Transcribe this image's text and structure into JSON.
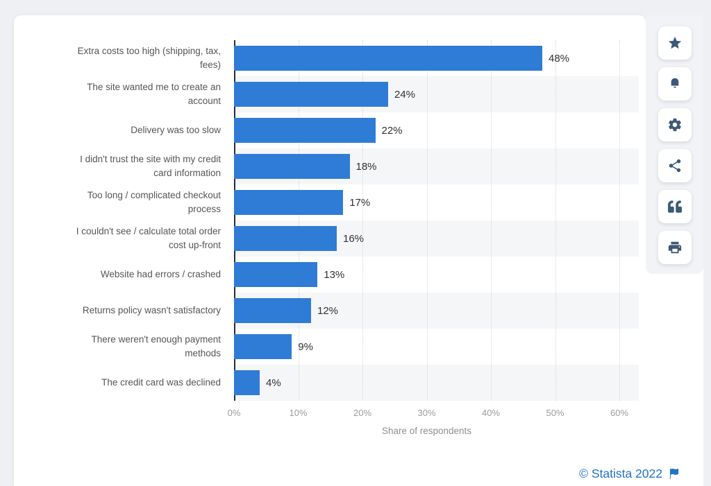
{
  "chart_data": {
    "type": "bar",
    "orientation": "horizontal",
    "title": "",
    "xlabel": "Share of respondents",
    "ylabel": "",
    "xlim": [
      0,
      60
    ],
    "x_ticks": [
      "0%",
      "10%",
      "20%",
      "30%",
      "40%",
      "50%",
      "60%"
    ],
    "grid": "dotted-vertical",
    "legend": "none",
    "categories": [
      "Extra costs too high (shipping, tax, fees)",
      "The site wanted me to create an account",
      "Delivery was too slow",
      "I didn't trust the site with my credit card information",
      "Too long / complicated checkout process",
      "I couldn't see / calculate total order cost up-front",
      "Website had errors / crashed",
      "Returns policy wasn't satisfactory",
      "There weren't enough payment methods",
      "The credit card was declined"
    ],
    "categories_wrapped": [
      "Extra costs too high (shipping, tax,\nfees)",
      "The site wanted me to create an\naccount",
      "Delivery was too slow",
      "I didn't trust the site with my credit\ncard information",
      "Too long / complicated checkout\nprocess",
      "I couldn't see / calculate total order\ncost up-front",
      "Website had errors / crashed",
      "Returns policy wasn't satisfactory",
      "There weren't enough payment\nmethods",
      "The credit card was declined"
    ],
    "values": [
      48,
      24,
      22,
      18,
      17,
      16,
      13,
      12,
      9,
      4
    ],
    "value_labels": [
      "48%",
      "24%",
      "22%",
      "18%",
      "17%",
      "16%",
      "13%",
      "12%",
      "9%",
      "4%"
    ]
  },
  "colors": {
    "bar": "#2e7cd6",
    "band": "#f5f6f8",
    "icon": "#3c5977",
    "credit": "#2173c5"
  },
  "toolbar": {
    "buttons": [
      {
        "name": "favorite",
        "icon": "star-icon"
      },
      {
        "name": "alerts",
        "icon": "bell-icon"
      },
      {
        "name": "settings",
        "icon": "gear-icon"
      },
      {
        "name": "share",
        "icon": "share-icon"
      },
      {
        "name": "cite",
        "icon": "quote-icon"
      },
      {
        "name": "print",
        "icon": "printer-icon"
      }
    ]
  },
  "footer": {
    "credit": "© Statista 2022"
  }
}
